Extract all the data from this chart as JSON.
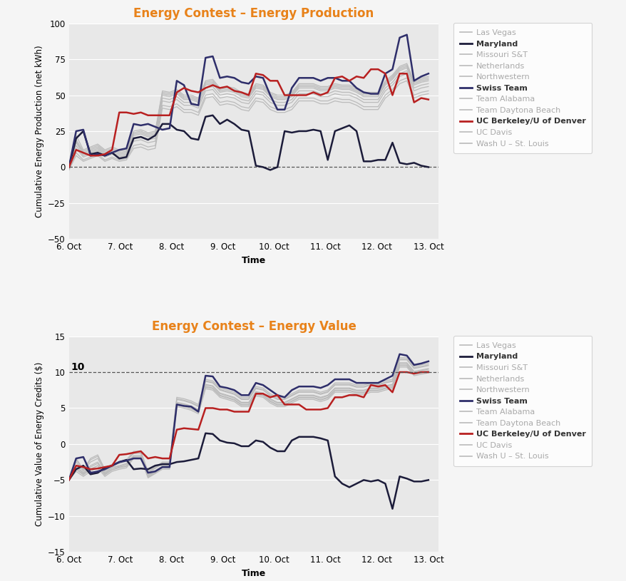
{
  "title1": "Energy Contest – Energy Production",
  "title2": "Energy Contest – Energy Value",
  "ylabel1": "Cumulative Energy Production (net kWh)",
  "ylabel2": "Cumulative Value of Energy Credits ($)",
  "xlabel": "Time",
  "ylim1": [
    -50,
    100
  ],
  "ylim2": [
    -15,
    15
  ],
  "yticks1": [
    -50,
    -25,
    0,
    25,
    50,
    75,
    100
  ],
  "yticks2": [
    -15,
    -10,
    -5,
    0,
    5,
    10,
    15
  ],
  "dashed_line_value": 10,
  "dashed_line_label": "10",
  "title_color": "#E8821A",
  "plot_bg": "#E8E8E8",
  "outer_bg": "#F5F5F5",
  "gray_line_color": "#BBBBBB",
  "maryland_color": "#1C1C3A",
  "swiss_color": "#2E2E6A",
  "berkeley_color": "#B82020",
  "legend_entries": [
    "Las Vegas",
    "Maryland",
    "Missouri S&T",
    "Netherlands",
    "Northwestern",
    "Swiss Team",
    "Team Alabama",
    "Team Daytona Beach",
    "UC Berkeley/U of Denver",
    "UC Davis",
    "Wash U – St. Louis"
  ],
  "legend_bold": [
    "Maryland",
    "Swiss Team",
    "UC Berkeley/U of Denver"
  ],
  "xtick_labels": [
    "6. Oct",
    "7. Oct",
    "8. Oct",
    "9. Oct",
    "10. Oct",
    "11. Oct",
    "12. Oct",
    "13. Oct"
  ],
  "p_maryland": [
    0,
    20,
    25,
    9,
    10,
    8,
    10,
    6,
    7,
    20,
    21,
    19,
    22,
    30,
    30,
    26,
    25,
    20,
    19,
    35,
    36,
    30,
    33,
    30,
    26,
    25,
    1,
    0,
    -2,
    0,
    25,
    24,
    25,
    25,
    26,
    25,
    5,
    25,
    27,
    29,
    25,
    4,
    4,
    5,
    5,
    17,
    3,
    2,
    3,
    1,
    0
  ],
  "p_swiss": [
    0,
    25,
    26,
    8,
    9,
    8,
    10,
    12,
    13,
    30,
    29,
    30,
    28,
    26,
    27,
    60,
    57,
    44,
    43,
    76,
    77,
    62,
    63,
    62,
    59,
    58,
    63,
    62,
    50,
    40,
    40,
    55,
    62,
    62,
    62,
    60,
    62,
    62,
    60,
    60,
    55,
    52,
    51,
    51,
    65,
    68,
    90,
    92,
    60,
    63,
    65
  ],
  "p_berkeley": [
    0,
    12,
    10,
    8,
    8,
    9,
    12,
    38,
    38,
    37,
    38,
    36,
    36,
    36,
    36,
    52,
    55,
    53,
    52,
    55,
    57,
    55,
    56,
    53,
    52,
    50,
    65,
    64,
    60,
    60,
    50,
    50,
    50,
    50,
    52,
    50,
    52,
    62,
    63,
    60,
    63,
    62,
    68,
    68,
    65,
    50,
    65,
    65,
    45,
    48,
    47
  ],
  "v_maryland": [
    -5.0,
    -3.5,
    -3.0,
    -4.2,
    -4.0,
    -3.3,
    -3.0,
    -2.5,
    -2.2,
    -3.5,
    -3.4,
    -3.5,
    -3.0,
    -2.8,
    -2.8,
    -2.5,
    -2.4,
    -2.2,
    -2.0,
    1.5,
    1.4,
    0.5,
    0.2,
    0.1,
    -0.3,
    -0.3,
    0.5,
    0.3,
    -0.5,
    -1.0,
    -1.0,
    0.5,
    1.0,
    1.0,
    1.0,
    0.8,
    0.5,
    -4.5,
    -5.5,
    -6.0,
    -5.5,
    -5.0,
    -5.2,
    -5.0,
    -5.5,
    -9.0,
    -4.5,
    -4.8,
    -5.2,
    -5.2,
    -5.0
  ],
  "v_swiss": [
    -5.0,
    -2.0,
    -1.8,
    -4.0,
    -3.8,
    -3.5,
    -3.0,
    -2.5,
    -2.3,
    -2.0,
    -2.0,
    -4.0,
    -3.8,
    -3.2,
    -3.2,
    5.5,
    5.3,
    5.2,
    4.5,
    9.5,
    9.4,
    8.0,
    7.8,
    7.5,
    6.8,
    6.8,
    8.5,
    8.2,
    7.5,
    6.8,
    6.5,
    7.5,
    8.0,
    8.0,
    8.0,
    7.8,
    8.2,
    9.0,
    9.0,
    9.0,
    8.5,
    8.5,
    8.5,
    8.5,
    9.0,
    9.5,
    12.5,
    12.3,
    11.0,
    11.2,
    11.5
  ],
  "v_berkeley": [
    -5.0,
    -3.0,
    -3.2,
    -3.5,
    -3.4,
    -3.2,
    -3.0,
    -1.5,
    -1.4,
    -1.2,
    -1.0,
    -2.0,
    -1.8,
    -2.0,
    -2.0,
    2.0,
    2.2,
    2.1,
    2.0,
    5.0,
    5.0,
    4.8,
    4.8,
    4.5,
    4.5,
    4.5,
    7.0,
    7.0,
    6.5,
    6.8,
    5.5,
    5.5,
    5.5,
    4.8,
    4.8,
    4.8,
    5.0,
    6.5,
    6.5,
    6.8,
    6.8,
    6.5,
    8.2,
    8.0,
    8.2,
    7.2,
    10.0,
    10.0,
    9.8,
    10.0,
    10.0
  ],
  "gray_prod_data": [
    [
      0,
      22,
      12,
      14,
      16,
      12,
      14,
      12,
      13,
      25,
      26,
      24,
      25,
      53,
      52,
      54,
      50,
      50,
      48,
      60,
      61,
      55,
      56,
      55,
      52,
      51,
      58,
      57,
      52,
      50,
      50,
      52,
      58,
      58,
      58,
      56,
      56,
      58,
      57,
      57,
      55,
      52,
      52,
      52,
      60,
      64,
      70,
      72,
      60,
      62,
      63
    ],
    [
      0,
      18,
      10,
      12,
      14,
      10,
      12,
      10,
      11,
      23,
      24,
      22,
      23,
      51,
      50,
      52,
      48,
      48,
      46,
      58,
      59,
      53,
      54,
      53,
      50,
      49,
      56,
      55,
      50,
      48,
      48,
      50,
      56,
      56,
      56,
      54,
      54,
      56,
      55,
      55,
      53,
      50,
      50,
      50,
      58,
      62,
      68,
      70,
      58,
      60,
      61
    ],
    [
      0,
      15,
      8,
      10,
      12,
      8,
      10,
      8,
      9,
      20,
      21,
      19,
      20,
      48,
      47,
      49,
      45,
      45,
      43,
      55,
      56,
      50,
      51,
      50,
      47,
      46,
      53,
      52,
      47,
      45,
      45,
      47,
      53,
      53,
      53,
      51,
      51,
      53,
      52,
      52,
      50,
      47,
      47,
      47,
      55,
      59,
      65,
      67,
      55,
      57,
      58
    ],
    [
      0,
      19,
      11,
      13,
      15,
      11,
      13,
      11,
      12,
      24,
      25,
      23,
      24,
      52,
      51,
      53,
      49,
      49,
      47,
      59,
      60,
      54,
      55,
      54,
      51,
      50,
      57,
      56,
      51,
      49,
      49,
      51,
      57,
      57,
      57,
      55,
      55,
      57,
      56,
      56,
      54,
      51,
      51,
      51,
      59,
      63,
      69,
      71,
      59,
      61,
      62
    ],
    [
      -2,
      10,
      5,
      7,
      9,
      5,
      7,
      5,
      6,
      15,
      16,
      14,
      15,
      43,
      42,
      44,
      40,
      40,
      38,
      50,
      51,
      45,
      46,
      45,
      42,
      41,
      48,
      47,
      42,
      40,
      40,
      42,
      48,
      48,
      48,
      46,
      46,
      48,
      47,
      47,
      45,
      42,
      42,
      42,
      50,
      54,
      60,
      62,
      50,
      52,
      53
    ],
    [
      -2,
      8,
      4,
      6,
      8,
      4,
      6,
      4,
      5,
      13,
      14,
      12,
      13,
      41,
      40,
      42,
      38,
      38,
      36,
      48,
      49,
      43,
      44,
      43,
      40,
      39,
      46,
      45,
      40,
      38,
      38,
      40,
      46,
      46,
      46,
      44,
      44,
      46,
      45,
      45,
      43,
      40,
      40,
      40,
      48,
      52,
      58,
      60,
      48,
      50,
      51
    ],
    [
      0,
      17,
      9,
      11,
      13,
      9,
      11,
      9,
      10,
      22,
      23,
      21,
      22,
      50,
      49,
      51,
      47,
      47,
      45,
      57,
      58,
      52,
      53,
      52,
      49,
      48,
      55,
      54,
      49,
      47,
      47,
      49,
      55,
      55,
      55,
      53,
      53,
      55,
      54,
      54,
      52,
      49,
      49,
      49,
      57,
      61,
      67,
      69,
      57,
      59,
      60
    ],
    [
      -1,
      13,
      7,
      9,
      11,
      7,
      9,
      7,
      8,
      18,
      19,
      17,
      18,
      46,
      45,
      47,
      43,
      43,
      41,
      53,
      54,
      48,
      49,
      48,
      45,
      44,
      51,
      50,
      45,
      43,
      43,
      45,
      51,
      51,
      51,
      49,
      49,
      51,
      50,
      50,
      48,
      45,
      45,
      45,
      53,
      57,
      63,
      65,
      53,
      55,
      56
    ]
  ],
  "gray_val_data": [
    [
      -5,
      -2.0,
      -3.5,
      -2.0,
      -1.5,
      -3.5,
      -2.8,
      -2.5,
      -2.2,
      -1.0,
      -1.0,
      -3.8,
      -3.2,
      -2.5,
      -2.5,
      6.5,
      6.3,
      6.0,
      5.5,
      9.0,
      8.8,
      7.8,
      7.5,
      7.2,
      6.5,
      6.5,
      8.0,
      7.8,
      7.0,
      6.5,
      6.5,
      7.0,
      7.5,
      7.5,
      7.5,
      7.2,
      7.5,
      8.5,
      8.5,
      8.5,
      8.2,
      8.2,
      8.5,
      8.5,
      8.8,
      9.0,
      12.0,
      12.0,
      10.8,
      11.0,
      11.2
    ],
    [
      -5,
      -2.5,
      -3.8,
      -2.5,
      -2.0,
      -3.8,
      -3.0,
      -2.7,
      -2.4,
      -1.3,
      -1.3,
      -4.0,
      -3.4,
      -2.7,
      -2.7,
      6.2,
      6.0,
      5.7,
      5.2,
      8.7,
      8.5,
      7.5,
      7.2,
      6.9,
      6.2,
      6.2,
      7.7,
      7.5,
      6.7,
      6.2,
      6.2,
      6.7,
      7.2,
      7.2,
      7.2,
      6.9,
      7.2,
      8.2,
      8.2,
      8.2,
      7.9,
      7.9,
      8.2,
      8.2,
      8.5,
      8.7,
      11.7,
      11.7,
      10.5,
      10.7,
      10.9
    ],
    [
      -5,
      -3.0,
      -4.0,
      -3.0,
      -2.5,
      -4.0,
      -3.2,
      -3.0,
      -2.7,
      -1.6,
      -1.6,
      -4.3,
      -3.7,
      -3.0,
      -3.0,
      5.8,
      5.6,
      5.3,
      4.8,
      8.3,
      8.1,
      7.1,
      6.8,
      6.5,
      5.8,
      5.8,
      7.3,
      7.1,
      6.3,
      5.8,
      5.8,
      6.3,
      6.8,
      6.8,
      6.8,
      6.5,
      6.8,
      7.8,
      7.8,
      7.8,
      7.5,
      7.5,
      7.8,
      7.8,
      8.1,
      8.3,
      11.3,
      11.3,
      10.1,
      10.3,
      10.5
    ],
    [
      -5,
      -2.2,
      -3.6,
      -2.2,
      -1.7,
      -3.6,
      -2.9,
      -2.6,
      -2.3,
      -1.2,
      -1.2,
      -3.9,
      -3.3,
      -2.6,
      -2.6,
      6.3,
      6.1,
      5.8,
      5.3,
      8.8,
      8.6,
      7.6,
      7.3,
      7.0,
      6.3,
      6.3,
      7.8,
      7.6,
      6.8,
      6.3,
      6.3,
      6.8,
      7.3,
      7.3,
      7.3,
      7.0,
      7.3,
      8.3,
      8.3,
      8.3,
      8.0,
      8.0,
      8.3,
      8.3,
      8.6,
      8.8,
      11.8,
      11.8,
      10.6,
      10.8,
      11.0
    ],
    [
      -5,
      -3.5,
      -4.2,
      -3.5,
      -3.0,
      -4.2,
      -3.5,
      -3.2,
      -3.0,
      -1.8,
      -1.8,
      -4.5,
      -3.9,
      -3.2,
      -3.2,
      5.5,
      5.3,
      5.0,
      4.5,
      8.0,
      7.8,
      6.8,
      6.5,
      6.2,
      5.5,
      5.5,
      7.0,
      6.8,
      6.0,
      5.5,
      5.5,
      6.0,
      6.5,
      6.5,
      6.5,
      6.2,
      6.5,
      7.5,
      7.5,
      7.5,
      7.2,
      7.2,
      7.5,
      7.5,
      7.8,
      8.0,
      11.0,
      11.0,
      9.8,
      10.0,
      10.2
    ],
    [
      -5,
      -3.8,
      -4.5,
      -3.8,
      -3.3,
      -4.5,
      -3.8,
      -3.5,
      -3.3,
      -2.0,
      -2.0,
      -4.7,
      -4.1,
      -3.5,
      -3.5,
      5.2,
      5.0,
      4.7,
      4.2,
      7.7,
      7.5,
      6.5,
      6.2,
      5.9,
      5.2,
      5.2,
      6.7,
      6.5,
      5.7,
      5.2,
      5.2,
      5.7,
      6.2,
      6.2,
      6.2,
      5.9,
      6.2,
      7.2,
      7.2,
      7.2,
      6.9,
      6.9,
      7.2,
      7.2,
      7.5,
      7.7,
      10.7,
      10.7,
      9.5,
      9.7,
      9.9
    ],
    [
      -5,
      -3.2,
      -4.1,
      -3.2,
      -2.7,
      -4.1,
      -3.3,
      -3.1,
      -2.8,
      -1.7,
      -1.7,
      -4.4,
      -3.8,
      -3.1,
      -3.1,
      5.7,
      5.5,
      5.2,
      4.7,
      8.2,
      8.0,
      7.0,
      6.7,
      6.4,
      5.7,
      5.7,
      7.2,
      7.0,
      6.2,
      5.7,
      5.7,
      6.2,
      6.7,
      6.7,
      6.7,
      6.4,
      6.7,
      7.7,
      7.7,
      7.7,
      7.4,
      7.4,
      7.7,
      7.7,
      8.0,
      8.2,
      11.2,
      11.2,
      10.0,
      10.2,
      10.4
    ],
    [
      -5,
      -3.5,
      -4.3,
      -3.5,
      -3.0,
      -4.3,
      -3.6,
      -3.3,
      -3.1,
      -1.9,
      -1.9,
      -4.6,
      -4.0,
      -3.3,
      -3.3,
      5.4,
      5.2,
      4.9,
      4.4,
      7.9,
      7.7,
      6.7,
      6.4,
      6.1,
      5.4,
      5.4,
      6.9,
      6.7,
      5.9,
      5.4,
      5.4,
      5.9,
      6.4,
      6.4,
      6.4,
      6.1,
      6.4,
      7.4,
      7.4,
      7.4,
      7.1,
      7.1,
      7.4,
      7.4,
      7.7,
      7.9,
      10.9,
      10.9,
      9.7,
      9.9,
      10.1
    ]
  ],
  "num_points": 51
}
